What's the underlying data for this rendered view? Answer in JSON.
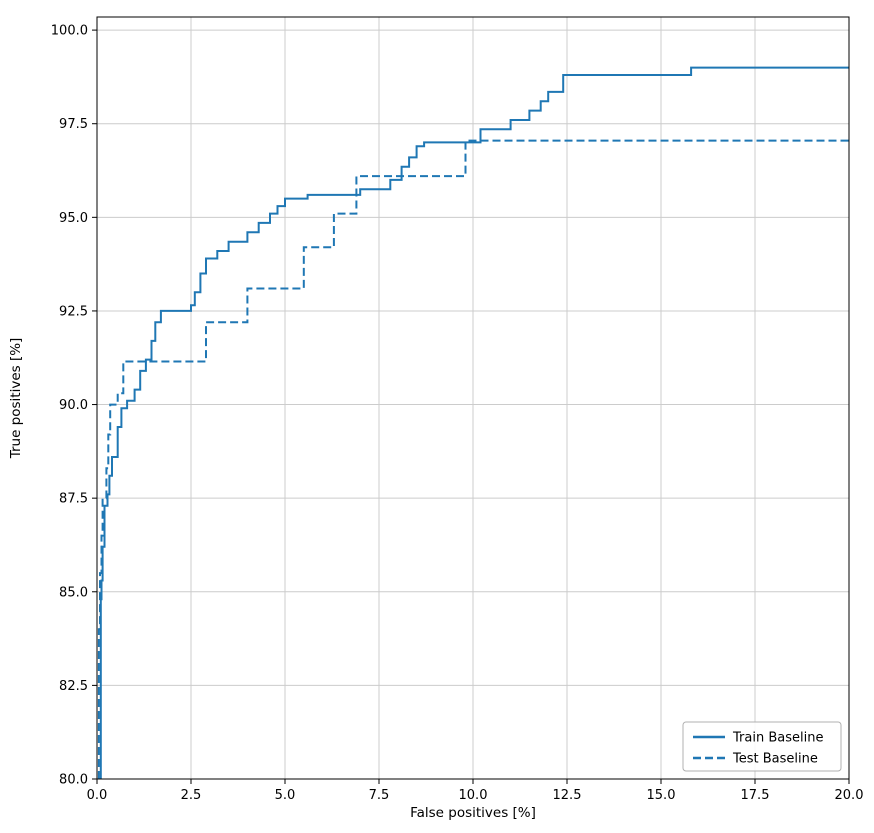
{
  "chart_data": {
    "type": "line",
    "title": "",
    "xlabel": "False positives [%]",
    "ylabel": "True positives [%]",
    "xlim": [
      0,
      20
    ],
    "ylim": [
      80,
      100.35
    ],
    "xticks": [
      0.0,
      2.5,
      5.0,
      7.5,
      10.0,
      12.5,
      15.0,
      17.5,
      20.0
    ],
    "xtick_labels": [
      "0.0",
      "2.5",
      "5.0",
      "7.5",
      "10.0",
      "12.5",
      "15.0",
      "17.5",
      "20.0"
    ],
    "yticks": [
      80.0,
      82.5,
      85.0,
      87.5,
      90.0,
      92.5,
      95.0,
      97.5,
      100.0
    ],
    "ytick_labels": [
      "80.0",
      "82.5",
      "85.0",
      "87.5",
      "90.0",
      "92.5",
      "95.0",
      "97.5",
      "100.0"
    ],
    "grid": true,
    "grid_color": "#cccccc",
    "spine_color": "#000000",
    "line_color": "#1f77b4",
    "legend_position": "lower right",
    "series": [
      {
        "name": "Train Baseline",
        "style": "solid",
        "points": [
          [
            0.1,
            80.0
          ],
          [
            0.1,
            84.8
          ],
          [
            0.12,
            84.8
          ],
          [
            0.12,
            85.3
          ],
          [
            0.15,
            85.3
          ],
          [
            0.15,
            86.2
          ],
          [
            0.2,
            86.2
          ],
          [
            0.2,
            87.3
          ],
          [
            0.28,
            87.3
          ],
          [
            0.28,
            87.6
          ],
          [
            0.33,
            87.6
          ],
          [
            0.33,
            88.1
          ],
          [
            0.4,
            88.1
          ],
          [
            0.4,
            88.6
          ],
          [
            0.55,
            88.6
          ],
          [
            0.55,
            89.4
          ],
          [
            0.65,
            89.4
          ],
          [
            0.65,
            89.9
          ],
          [
            0.8,
            89.9
          ],
          [
            0.8,
            90.1
          ],
          [
            1.0,
            90.1
          ],
          [
            1.0,
            90.4
          ],
          [
            1.15,
            90.4
          ],
          [
            1.15,
            90.9
          ],
          [
            1.3,
            90.9
          ],
          [
            1.3,
            91.2
          ],
          [
            1.45,
            91.2
          ],
          [
            1.45,
            91.7
          ],
          [
            1.55,
            91.7
          ],
          [
            1.55,
            92.2
          ],
          [
            1.7,
            92.2
          ],
          [
            1.7,
            92.5
          ],
          [
            2.5,
            92.5
          ],
          [
            2.5,
            92.65
          ],
          [
            2.6,
            92.65
          ],
          [
            2.6,
            93.0
          ],
          [
            2.75,
            93.0
          ],
          [
            2.75,
            93.5
          ],
          [
            2.9,
            93.5
          ],
          [
            2.9,
            93.9
          ],
          [
            3.2,
            93.9
          ],
          [
            3.2,
            94.1
          ],
          [
            3.5,
            94.1
          ],
          [
            3.5,
            94.35
          ],
          [
            4.0,
            94.35
          ],
          [
            4.0,
            94.6
          ],
          [
            4.3,
            94.6
          ],
          [
            4.3,
            94.85
          ],
          [
            4.6,
            94.85
          ],
          [
            4.6,
            95.1
          ],
          [
            4.8,
            95.1
          ],
          [
            4.8,
            95.3
          ],
          [
            5.0,
            95.3
          ],
          [
            5.0,
            95.5
          ],
          [
            5.6,
            95.5
          ],
          [
            5.6,
            95.6
          ],
          [
            7.0,
            95.6
          ],
          [
            7.0,
            95.75
          ],
          [
            7.8,
            95.75
          ],
          [
            7.8,
            96.0
          ],
          [
            8.1,
            96.0
          ],
          [
            8.1,
            96.35
          ],
          [
            8.3,
            96.35
          ],
          [
            8.3,
            96.6
          ],
          [
            8.5,
            96.6
          ],
          [
            8.5,
            96.9
          ],
          [
            8.7,
            96.9
          ],
          [
            8.7,
            97.0
          ],
          [
            10.2,
            97.0
          ],
          [
            10.2,
            97.35
          ],
          [
            11.0,
            97.35
          ],
          [
            11.0,
            97.6
          ],
          [
            11.5,
            97.6
          ],
          [
            11.5,
            97.85
          ],
          [
            11.8,
            97.85
          ],
          [
            11.8,
            98.1
          ],
          [
            12.0,
            98.1
          ],
          [
            12.0,
            98.35
          ],
          [
            12.4,
            98.35
          ],
          [
            12.4,
            98.8
          ],
          [
            15.8,
            98.8
          ],
          [
            15.8,
            99.0
          ],
          [
            20.0,
            99.0
          ]
        ]
      },
      {
        "name": "Test Baseline",
        "style": "dashed",
        "points": [
          [
            0.05,
            80.0
          ],
          [
            0.05,
            84.0
          ],
          [
            0.08,
            84.0
          ],
          [
            0.08,
            85.5
          ],
          [
            0.12,
            85.5
          ],
          [
            0.12,
            86.5
          ],
          [
            0.15,
            86.5
          ],
          [
            0.15,
            87.5
          ],
          [
            0.25,
            87.5
          ],
          [
            0.25,
            88.3
          ],
          [
            0.3,
            88.3
          ],
          [
            0.3,
            89.2
          ],
          [
            0.35,
            89.2
          ],
          [
            0.35,
            90.0
          ],
          [
            0.55,
            90.0
          ],
          [
            0.55,
            90.3
          ],
          [
            0.7,
            90.3
          ],
          [
            0.7,
            91.15
          ],
          [
            2.9,
            91.15
          ],
          [
            2.9,
            92.2
          ],
          [
            4.0,
            92.2
          ],
          [
            4.0,
            93.1
          ],
          [
            5.5,
            93.1
          ],
          [
            5.5,
            94.2
          ],
          [
            6.3,
            94.2
          ],
          [
            6.3,
            95.1
          ],
          [
            6.9,
            95.1
          ],
          [
            6.9,
            96.1
          ],
          [
            9.8,
            96.1
          ],
          [
            9.8,
            97.05
          ],
          [
            20.0,
            97.05
          ]
        ]
      }
    ]
  }
}
